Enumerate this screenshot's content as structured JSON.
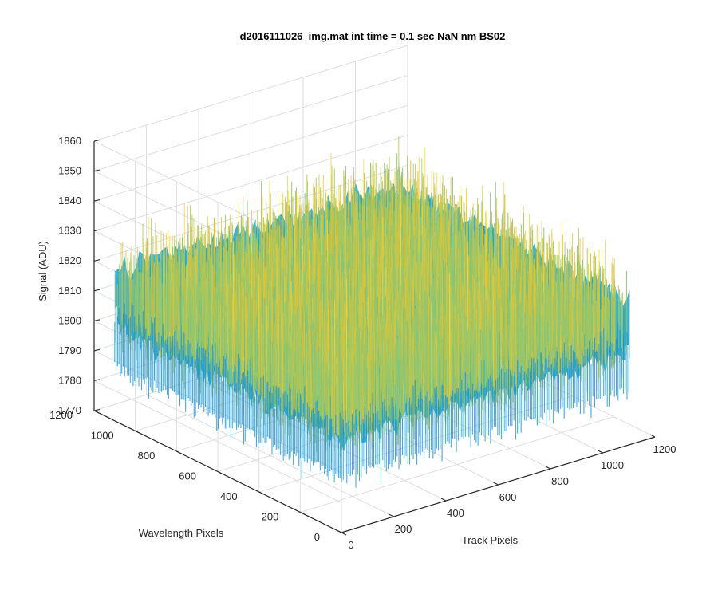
{
  "chart_data": {
    "type": "surface",
    "title": "d2016111026_img.mat int time = 0.1 sec  NaN nm BS02",
    "xlabel": "Track Pixels",
    "ylabel": "Wavelength Pixels",
    "zlabel": "Signal (ADU)",
    "xlim": [
      0,
      1200
    ],
    "ylim": [
      0,
      1200
    ],
    "zlim": [
      1770,
      1860
    ],
    "x_ticks": [
      "0",
      "200",
      "400",
      "600",
      "800",
      "1000",
      "1200"
    ],
    "y_ticks": [
      "0",
      "200",
      "400",
      "600",
      "800",
      "1000",
      "1200"
    ],
    "z_ticks": [
      "1770",
      "1780",
      "1790",
      "1800",
      "1810",
      "1820",
      "1830",
      "1840",
      "1850",
      "1860"
    ],
    "data_extent": {
      "x": [
        0,
        1100
      ],
      "y": [
        0,
        1100
      ]
    },
    "signal_mean": 1812,
    "signal_range": [
      1775,
      1845
    ],
    "grid": true,
    "colormap": [
      "#0072bd",
      "#1e9fd8",
      "#2db8c8",
      "#5fc29a",
      "#97c76a",
      "#d9c43c",
      "#f2d53a"
    ],
    "colors": {
      "axis": "#262626",
      "grid": "#dedede",
      "background": "#ffffff"
    }
  }
}
